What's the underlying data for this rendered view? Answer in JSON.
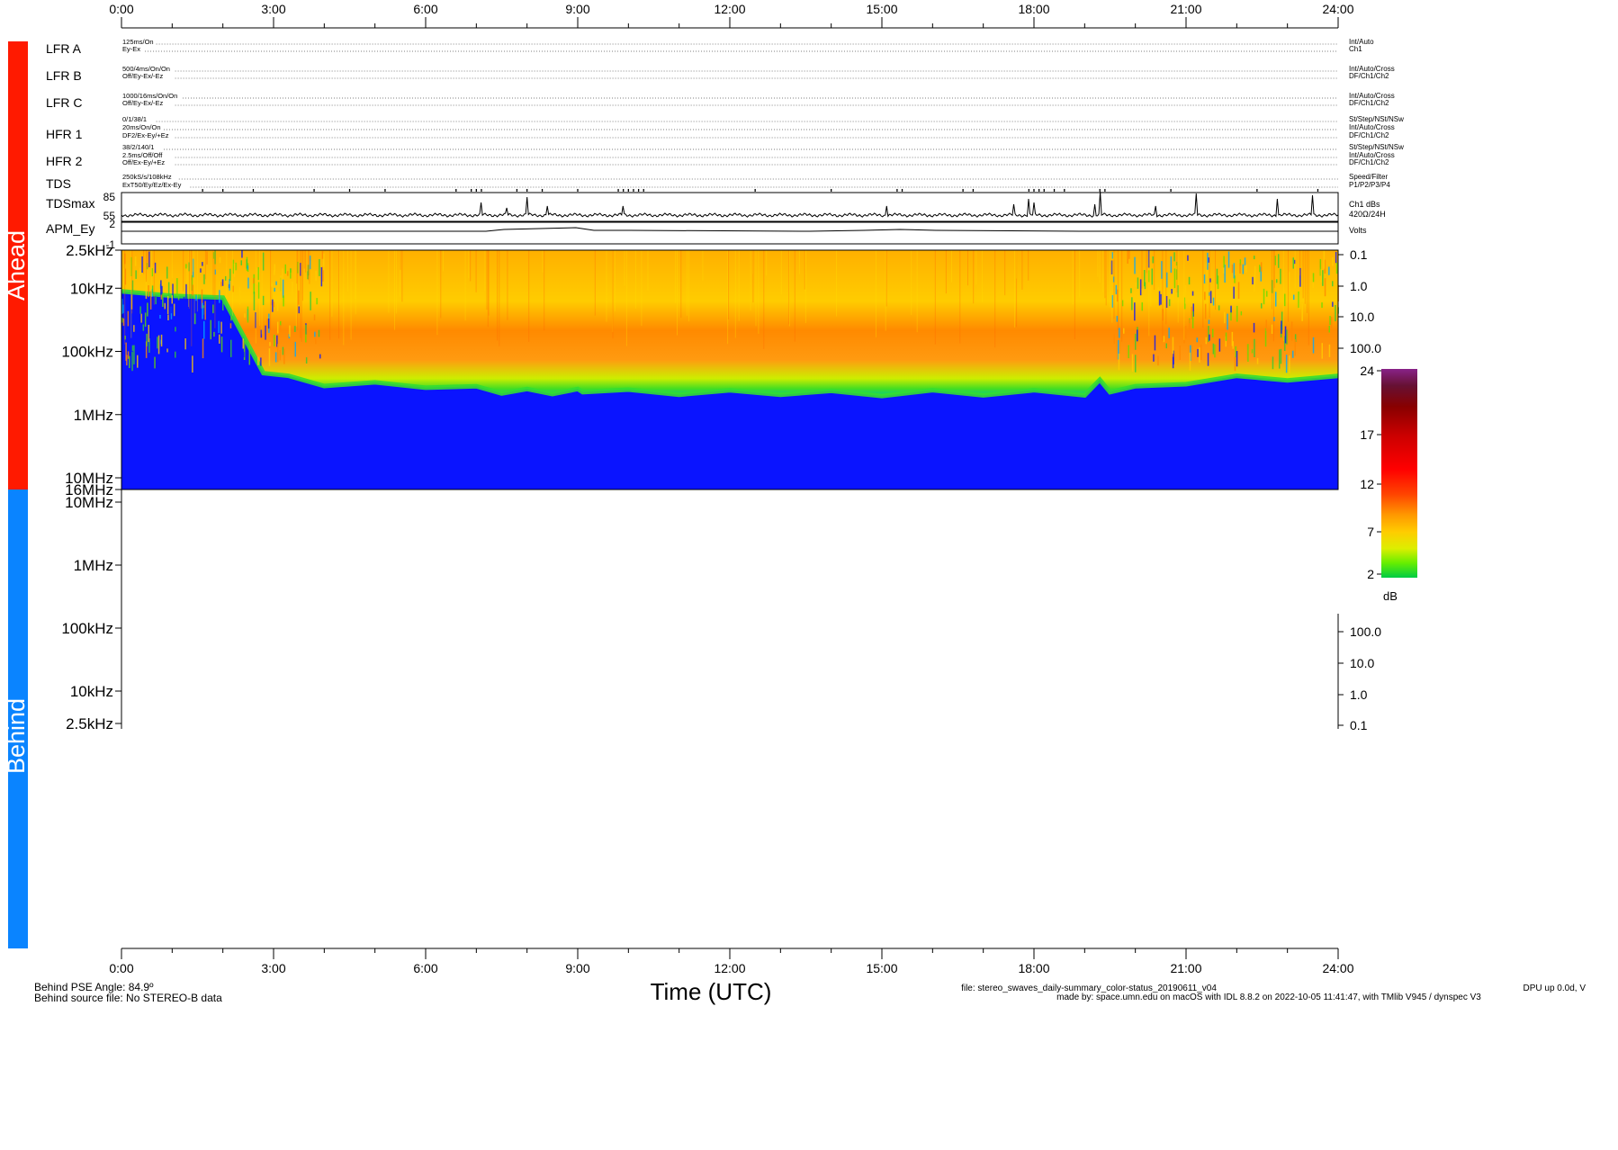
{
  "top_axis": {
    "ticks": [
      "0:00",
      "3:00",
      "6:00",
      "9:00",
      "12:00",
      "15:00",
      "18:00",
      "21:00",
      "24:00"
    ]
  },
  "side_labels": {
    "ahead": "Ahead",
    "behind": "Behind"
  },
  "colors": {
    "ahead_bar": "#ff1a00",
    "behind_bar": "#0a84ff",
    "background_blue": "#0a14ff"
  },
  "instrument_rows": [
    {
      "name": "LFR A",
      "lines": [
        "125ms/On",
        "Ey-Ex"
      ],
      "right": [
        "Int/Auto",
        "Ch1"
      ]
    },
    {
      "name": "LFR B",
      "lines": [
        "500/4ms/On/On",
        "Off/Ey-Ex/-Ez"
      ],
      "right": [
        "Int/Auto/Cross",
        "DF/Ch1/Ch2"
      ]
    },
    {
      "name": "LFR C",
      "lines": [
        "1000/16ms/On/On",
        "Off/Ey-Ex/-Ez"
      ],
      "right": [
        "Int/Auto/Cross",
        "DF/Ch1/Ch2"
      ]
    },
    {
      "name": "HFR 1",
      "lines": [
        "0/1/38/1",
        "20ms/On/On",
        "DF2/Ex-Ey/+Ez"
      ],
      "right": [
        "St/Step/NSt/NSw",
        "Int/Auto/Cross",
        "DF/Ch1/Ch2"
      ]
    },
    {
      "name": "HFR 2",
      "lines": [
        "38/2/140/1",
        "2.5ms/Off/Off",
        "Off/Ex-Ey/+Ez"
      ],
      "right": [
        "St/Step/NSt/NSw",
        "Int/Auto/Cross",
        "DF/Ch1/Ch2"
      ]
    },
    {
      "name": "TDS",
      "lines": [
        "250kS/s/108kHz",
        "ExT50/Ey/Ez/Ex-Ey"
      ],
      "right": [
        "Speed/Filter",
        "P1/P2/P3/P4"
      ]
    }
  ],
  "tdsmax": {
    "label": "TDSmax",
    "ticks": [
      "85",
      "55"
    ],
    "right": [
      "Ch1 dBs",
      "420Ω/24H"
    ]
  },
  "apm": {
    "label": "APM_Ey",
    "ticks": [
      "2",
      "-1"
    ],
    "right": "Volts"
  },
  "ahead_panel": {
    "freq_ticks": [
      "2.5kHz",
      "10kHz",
      "100kHz",
      "1MHz",
      "10MHz",
      "16MHz"
    ],
    "right_ticks": [
      "0.1",
      "1.0",
      "10.0",
      "100.0"
    ]
  },
  "behind_panel": {
    "freq_ticks": [
      "10MHz",
      "1MHz",
      "100kHz",
      "10kHz",
      "2.5kHz"
    ],
    "right_ticks": [
      "100.0",
      "10.0",
      "1.0",
      "0.1"
    ]
  },
  "colorbar": {
    "ticks": [
      "24",
      "17",
      "12",
      "7",
      "2"
    ],
    "unit": "dB"
  },
  "bottom_axis": {
    "ticks": [
      "0:00",
      "3:00",
      "6:00",
      "9:00",
      "12:00",
      "15:00",
      "18:00",
      "21:00",
      "24:00"
    ],
    "label": "Time (UTC)"
  },
  "footer": {
    "pse_angle": "Behind PSE Angle:   84.9º",
    "source_file": "Behind source file: No STEREO-B data",
    "file_line": "file: stereo_swaves_daily-summary_color-status_20190611_v04",
    "made_by": "made by: space.umn.edu on macOS with IDL 8.8.2 on 2022-10-05 11:41:47, with TMlib V945 / dynspec V3",
    "dpu": "DPU up 0.0d, V"
  },
  "chart_data": {
    "type": "heatmap",
    "title": "",
    "xlabel": "Time (UTC)",
    "xlim": [
      0,
      24
    ],
    "x_ticks": [
      "0:00",
      "3:00",
      "6:00",
      "9:00",
      "12:00",
      "15:00",
      "18:00",
      "21:00",
      "24:00"
    ],
    "y_scale": "log",
    "ahead_ylabel_ticks": [
      "2.5kHz",
      "10kHz",
      "100kHz",
      "1MHz",
      "10MHz",
      "16MHz"
    ],
    "colorbar": {
      "unit": "dB",
      "range": [
        2,
        24
      ],
      "ticks": [
        24,
        17,
        12,
        7,
        2
      ]
    },
    "ahead_envelope": {
      "hours": [
        0,
        1,
        2,
        2.8,
        3.3,
        4,
        5,
        6,
        7,
        7.5,
        8,
        8.5,
        9,
        9.1,
        10,
        11,
        12,
        13,
        14,
        15,
        16,
        17,
        18,
        19,
        19.3,
        19.5,
        20,
        21,
        22,
        23,
        24
      ],
      "cutoff_khz": [
        12,
        12,
        15,
        200,
        260,
        320,
        330,
        340,
        380,
        420,
        420,
        430,
        420,
        400,
        430,
        440,
        440,
        440,
        450,
        460,
        440,
        450,
        440,
        450,
        300,
        400,
        380,
        300,
        260,
        260,
        260
      ]
    },
    "behind": {
      "data": "No STEREO-B data"
    }
  }
}
